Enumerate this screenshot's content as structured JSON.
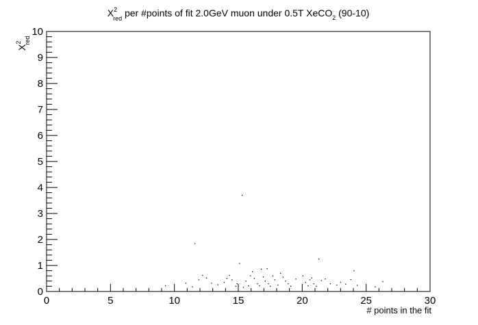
{
  "title": {
    "symbol": "X",
    "sup": "2",
    "sub": "red",
    "main": " per #points of fit 2.0GeV muon under 0.5T XeCO",
    "sub2": "2",
    "tail": " (90-10)"
  },
  "ylabel": {
    "symbol": "X",
    "sup": "2",
    "sub": "red"
  },
  "chart_data": {
    "type": "scatter",
    "xlabel": "# points in the fit",
    "xlim": [
      0,
      30
    ],
    "ylim": [
      0,
      10
    ],
    "x_ticks": [
      0,
      5,
      10,
      15,
      20,
      25,
      30
    ],
    "y_ticks": [
      0,
      1,
      2,
      3,
      4,
      5,
      6,
      7,
      8,
      9,
      10
    ],
    "grid": false,
    "points": [
      [
        9.3,
        0.22
      ],
      [
        10.9,
        0.32
      ],
      [
        11.4,
        0.18
      ],
      [
        11.6,
        1.84
      ],
      [
        11.9,
        0.45
      ],
      [
        12.2,
        0.62
      ],
      [
        12.5,
        0.52
      ],
      [
        12.9,
        0.32
      ],
      [
        13.4,
        0.26
      ],
      [
        13.9,
        0.35
      ],
      [
        14.1,
        0.5
      ],
      [
        14.3,
        0.62
      ],
      [
        14.5,
        0.45
      ],
      [
        14.8,
        0.2
      ],
      [
        14.9,
        0.3
      ],
      [
        15.1,
        1.08
      ],
      [
        15.3,
        3.7
      ],
      [
        15.4,
        0.16
      ],
      [
        15.6,
        0.4
      ],
      [
        15.8,
        0.22
      ],
      [
        15.95,
        0.6
      ],
      [
        16.1,
        0.76
      ],
      [
        16.25,
        0.5
      ],
      [
        16.5,
        0.3
      ],
      [
        16.65,
        0.22
      ],
      [
        16.8,
        0.86
      ],
      [
        16.95,
        0.56
      ],
      [
        17.1,
        0.4
      ],
      [
        17.25,
        0.88
      ],
      [
        17.35,
        0.3
      ],
      [
        17.5,
        0.2
      ],
      [
        17.7,
        0.6
      ],
      [
        17.85,
        0.45
      ],
      [
        18.1,
        0.25
      ],
      [
        18.3,
        0.7
      ],
      [
        18.5,
        0.55
      ],
      [
        18.7,
        0.4
      ],
      [
        18.9,
        0.3
      ],
      [
        19.1,
        0.2
      ],
      [
        19.5,
        0.48
      ],
      [
        20.05,
        0.6
      ],
      [
        20.25,
        0.35
      ],
      [
        20.45,
        0.22
      ],
      [
        20.6,
        0.45
      ],
      [
        20.75,
        0.52
      ],
      [
        20.9,
        0.3
      ],
      [
        21.1,
        0.2
      ],
      [
        21.3,
        1.25
      ],
      [
        21.5,
        0.42
      ],
      [
        21.8,
        0.48
      ],
      [
        22.2,
        0.3
      ],
      [
        22.7,
        0.25
      ],
      [
        23.0,
        0.35
      ],
      [
        23.4,
        0.28
      ],
      [
        23.8,
        0.46
      ],
      [
        24.05,
        0.8
      ],
      [
        24.3,
        0.24
      ],
      [
        25.7,
        0.18
      ],
      [
        26.3,
        0.38
      ]
    ]
  }
}
